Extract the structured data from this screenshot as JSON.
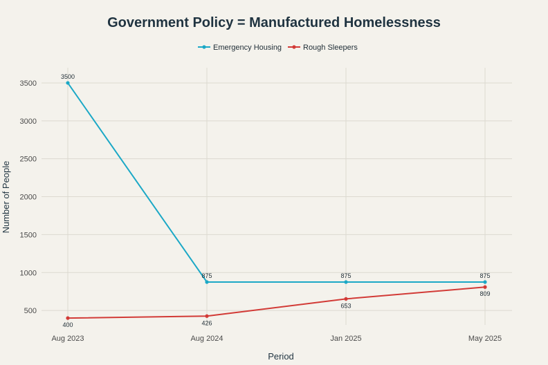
{
  "chart_data": {
    "type": "line",
    "title": "Government Policy = Manufactured Homelessness",
    "xlabel": "Period",
    "ylabel": "Number of People",
    "categories": [
      "Aug 2023",
      "Aug 2024",
      "Jan 2025",
      "May 2025"
    ],
    "yticks": [
      500,
      1000,
      1500,
      2000,
      2500,
      3000,
      3500
    ],
    "ylim": [
      310,
      3700
    ],
    "grid": true,
    "legend_position": "top-center",
    "series": [
      {
        "name": "Emergency Housing",
        "color": "#1ba8c6",
        "values": [
          3500,
          875,
          875,
          875
        ],
        "labels": [
          "3500",
          "875",
          "875",
          "875"
        ],
        "label_position": "above"
      },
      {
        "name": "Rough Sleepers",
        "color": "#d23a36",
        "values": [
          400,
          426,
          653,
          809
        ],
        "labels": [
          "400",
          "426",
          "653",
          "809"
        ],
        "label_position": "below"
      }
    ]
  }
}
